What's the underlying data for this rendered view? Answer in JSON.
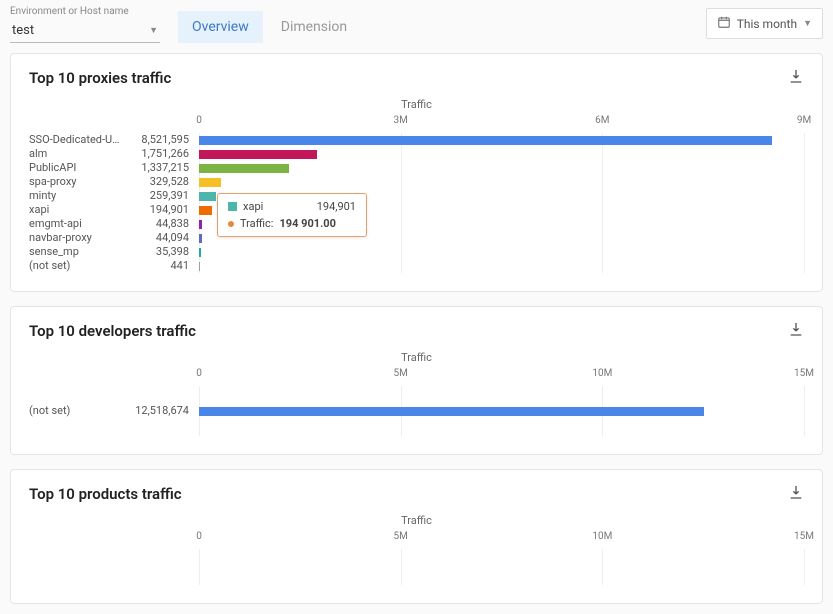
{
  "env": {
    "label": "Environment or Host name",
    "value": "test"
  },
  "tabs": {
    "overview": "Overview",
    "dimension": "Dimension"
  },
  "period": {
    "label": "This month"
  },
  "colors": {
    "palette": [
      "#4a86e8",
      "#c2185b",
      "#7cb342",
      "#f6bf26",
      "#4db6ac",
      "#ef6c00",
      "#8e24aa",
      "#5c6bc0",
      "#26a69a",
      "#9e9e9e"
    ]
  },
  "panels": [
    {
      "title": "Top 10 proxies traffic",
      "axis_title": "Traffic",
      "max": 9000000,
      "ticks": [
        {
          "pos": 0,
          "label": "0"
        },
        {
          "pos": 0.3333,
          "label": "3M"
        },
        {
          "pos": 0.6667,
          "label": "6M"
        },
        {
          "pos": 1,
          "label": "9M"
        }
      ],
      "rows": [
        {
          "name": "SSO-Dedicated-U…",
          "display": "8,521,595",
          "value": 8521595
        },
        {
          "name": "alm",
          "display": "1,751,266",
          "value": 1751266
        },
        {
          "name": "PublicAPI",
          "display": "1,337,215",
          "value": 1337215
        },
        {
          "name": "spa-proxy",
          "display": "329,528",
          "value": 329528
        },
        {
          "name": "minty",
          "display": "259,391",
          "value": 259391
        },
        {
          "name": "xapi",
          "display": "194,901",
          "value": 194901
        },
        {
          "name": "emgmt-api",
          "display": "44,838",
          "value": 44838
        },
        {
          "name": "navbar-proxy",
          "display": "44,094",
          "value": 44094
        },
        {
          "name": "sense_mp",
          "display": "35,398",
          "value": 35398
        },
        {
          "name": "(not set)",
          "display": "441",
          "value": 441
        }
      ],
      "tooltip": {
        "row_index": 5,
        "name": "xapi",
        "value_display": "194,901",
        "line_label": "Traffic:",
        "line_value": "194 901.00",
        "swatch_color": "#4db6ac"
      }
    },
    {
      "title": "Top 10 developers traffic",
      "axis_title": "Traffic",
      "max": 15000000,
      "ticks": [
        {
          "pos": 0,
          "label": "0"
        },
        {
          "pos": 0.3333,
          "label": "5M"
        },
        {
          "pos": 0.6667,
          "label": "10M"
        },
        {
          "pos": 1,
          "label": "15M"
        }
      ],
      "rows": [
        {
          "name": "(not set)",
          "display": "12,518,674",
          "value": 12518674
        }
      ]
    },
    {
      "title": "Top 10 products traffic",
      "axis_title": "Traffic",
      "max": 15000000,
      "ticks": [
        {
          "pos": 0,
          "label": "0"
        },
        {
          "pos": 0.3333,
          "label": "5M"
        },
        {
          "pos": 0.6667,
          "label": "10M"
        },
        {
          "pos": 1,
          "label": "15M"
        }
      ],
      "rows": []
    }
  ]
}
